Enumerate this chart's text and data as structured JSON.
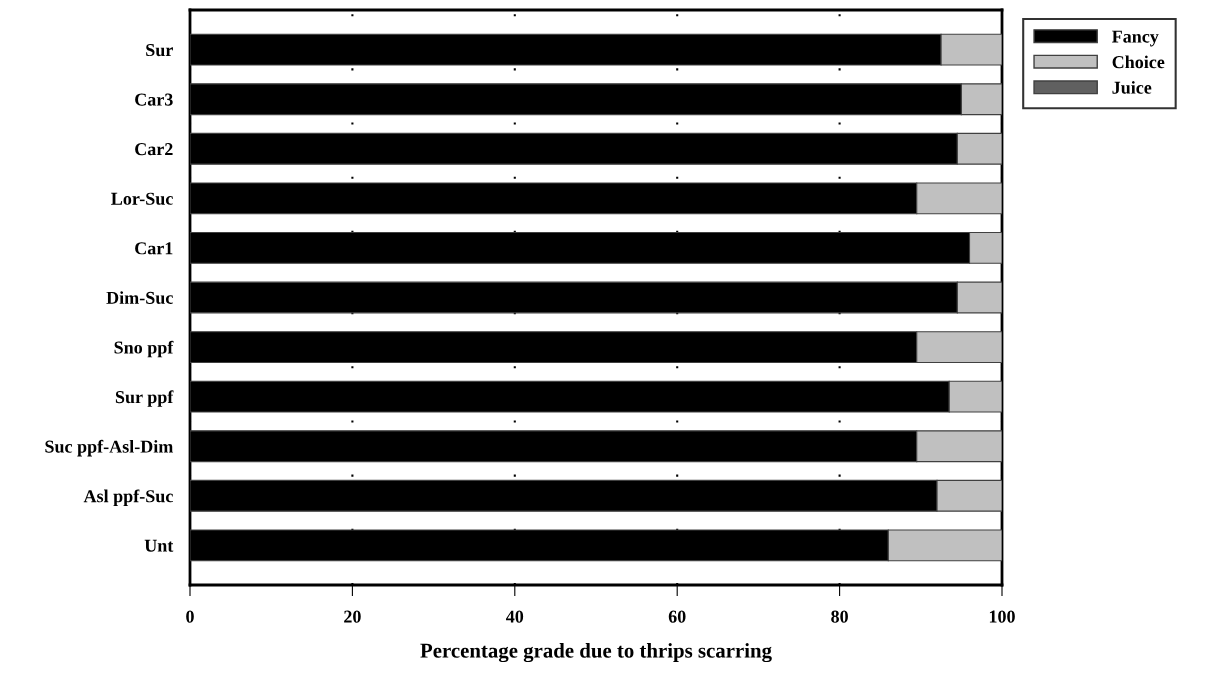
{
  "chart_data": {
    "type": "bar",
    "orientation": "horizontal",
    "stacked": true,
    "xlabel": "Percentage grade due to thrips scarring",
    "categories": [
      "Sur",
      "Car3",
      "Car2",
      "Lor-Suc",
      "Car1",
      "Dim-Suc",
      "Sno ppf",
      "Sur ppf",
      "Suc ppf-Asl-Dim",
      "Asl ppf-Suc",
      "Unt"
    ],
    "series": [
      {
        "name": "Fancy",
        "color": "#000000",
        "values": [
          92.5,
          95,
          94.5,
          89.5,
          96,
          94.5,
          89.5,
          93.5,
          89.5,
          92,
          86
        ]
      },
      {
        "name": "Choice",
        "color": "#c0c0c0",
        "values": [
          7.5,
          5,
          5.5,
          10.5,
          4,
          5.5,
          10.5,
          6.5,
          10.5,
          8,
          14
        ]
      },
      {
        "name": "Juice",
        "color": "#606060",
        "values": [
          0,
          0,
          0,
          0,
          0,
          0,
          0,
          0,
          0,
          0,
          0
        ]
      }
    ],
    "xlim": [
      0,
      100
    ],
    "xticks": [
      0,
      20,
      40,
      60,
      80,
      100
    ],
    "grid": "x",
    "legend": "top right"
  }
}
